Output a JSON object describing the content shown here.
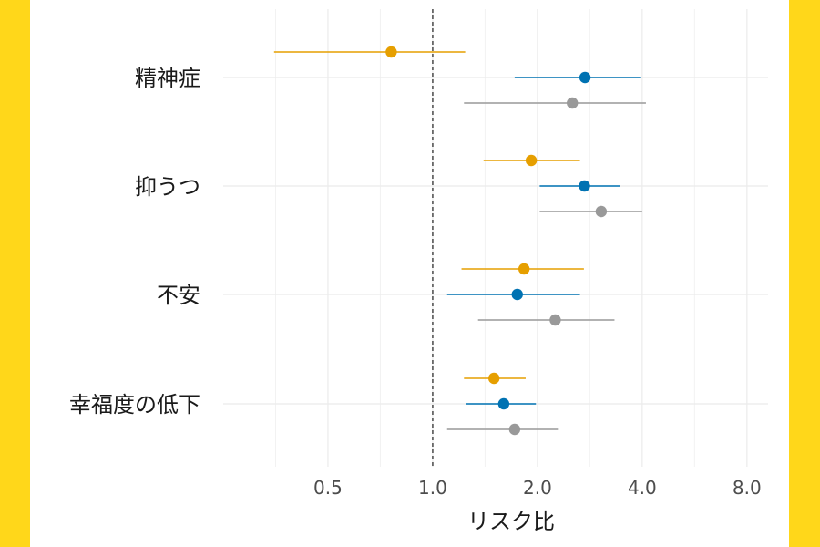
{
  "chart_data": {
    "type": "forest",
    "xlabel": "リスク比",
    "x_scale": "log2",
    "xlim": [
      0.25,
      9.2
    ],
    "x_ticks": [
      0.5,
      1.0,
      2.0,
      4.0,
      8.0
    ],
    "x_tick_labels": [
      "0.5",
      "1.0",
      "2.0",
      "4.0",
      "8.0"
    ],
    "reference_line": 1.0,
    "grid": true,
    "categories": [
      "精神症",
      "抑うつ",
      "不安",
      "幸福度の低下"
    ],
    "series_colors": [
      "#E69F00",
      "#0072B2",
      "#999999"
    ],
    "series": [
      {
        "points": [
          {
            "rr": 0.76,
            "lower": 0.35,
            "upper": 1.24
          },
          {
            "rr": 1.92,
            "lower": 1.4,
            "upper": 2.65
          },
          {
            "rr": 1.83,
            "lower": 1.21,
            "upper": 2.72
          },
          {
            "rr": 1.5,
            "lower": 1.23,
            "upper": 1.85
          }
        ]
      },
      {
        "points": [
          {
            "rr": 2.74,
            "lower": 1.72,
            "upper": 3.95
          },
          {
            "rr": 2.73,
            "lower": 2.03,
            "upper": 3.45
          },
          {
            "rr": 1.75,
            "lower": 1.1,
            "upper": 2.65
          },
          {
            "rr": 1.6,
            "lower": 1.25,
            "upper": 1.98
          }
        ]
      },
      {
        "points": [
          {
            "rr": 2.52,
            "lower": 1.23,
            "upper": 4.1
          },
          {
            "rr": 3.05,
            "lower": 2.03,
            "upper": 4.0
          },
          {
            "rr": 2.25,
            "lower": 1.35,
            "upper": 3.33
          },
          {
            "rr": 1.72,
            "lower": 1.1,
            "upper": 2.29
          }
        ]
      }
    ]
  }
}
